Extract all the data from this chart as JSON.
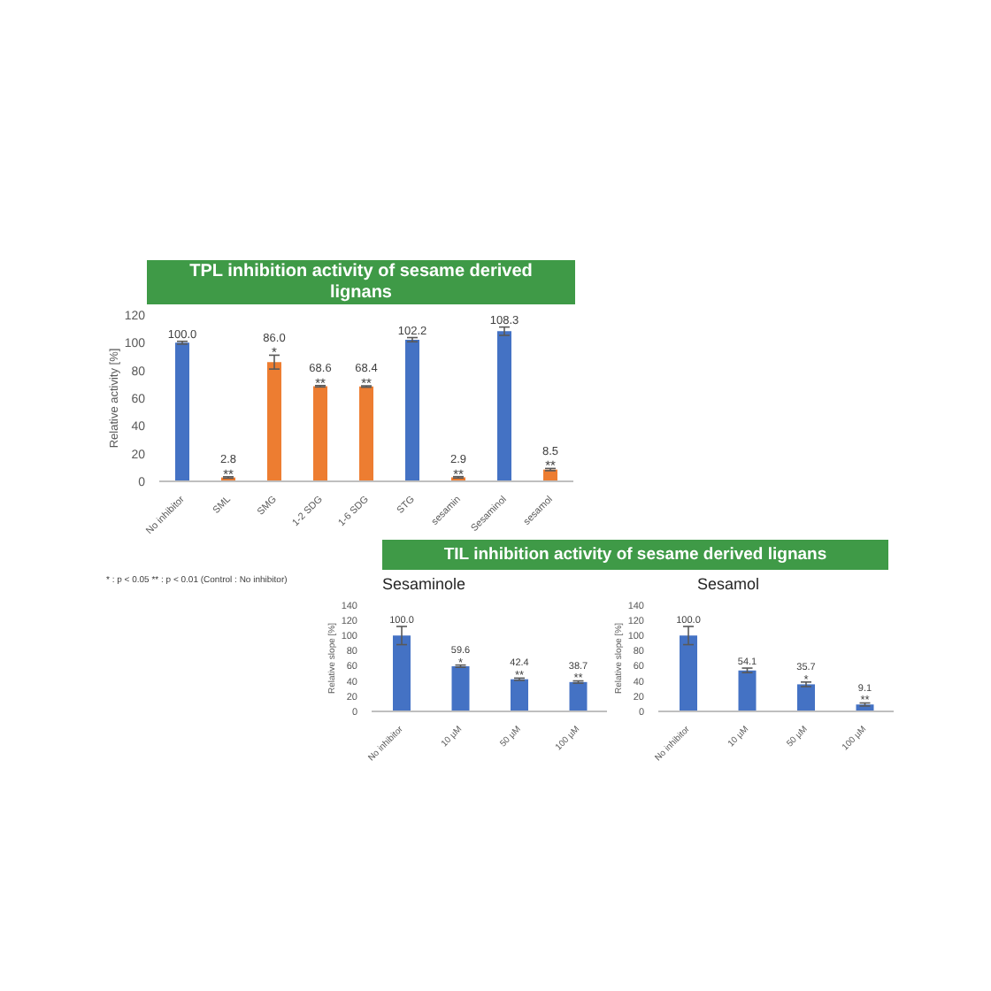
{
  "chart_data": [
    {
      "type": "bar",
      "title": "TPL inhibition activity of sesame derived lignans",
      "ylabel": "Relative activity [%]",
      "categories": [
        "No inhibitor",
        "SML",
        "SMG",
        "1-2 SDG",
        "1-6 SDG",
        "STG",
        "sesamin",
        "Sesaminol",
        "sesamol"
      ],
      "values": [
        100.0,
        2.8,
        86.0,
        68.6,
        68.4,
        102.2,
        2.9,
        108.3,
        8.5
      ],
      "colors": [
        "#4472c4",
        "#ed7d31",
        "#ed7d31",
        "#ed7d31",
        "#ed7d31",
        "#4472c4",
        "#ed7d31",
        "#4472c4",
        "#ed7d31"
      ],
      "errors": [
        1,
        0.5,
        5,
        0.5,
        0.5,
        1.5,
        0.5,
        3,
        0.8
      ],
      "value_labels": [
        "100.0",
        "2.8",
        "86.0",
        "68.6",
        "68.4",
        "102.2",
        "2.9",
        "108.3",
        "8.5"
      ],
      "ylim": [
        0,
        120
      ],
      "yticks": [
        0,
        20,
        40,
        60,
        80,
        100,
        120
      ],
      "annotations": [
        {
          "text": "**",
          "x": "SML",
          "y": 2.8
        },
        {
          "text": "*",
          "x": "SMG",
          "y": 86.0
        },
        {
          "text": "**",
          "x": "1-2 SDG",
          "y": 68.6
        },
        {
          "text": "**",
          "x": "1-6 SDG",
          "y": 68.4
        },
        {
          "text": "**",
          "x": "sesamin",
          "y": 2.9
        },
        {
          "text": "**",
          "x": "sesamol",
          "y": 8.5
        },
        "* : p < 0.05   ** : p < 0.01 (Control : No inhibitor)"
      ]
    },
    {
      "type": "other",
      "title": "TIL inhibition activity of sesame derived lignans"
    },
    {
      "type": "bar",
      "title": "Sesaminole",
      "ylabel": "Relative slope [%]",
      "categories": [
        "No inhibitor",
        "10 µM",
        "50 µM",
        "100 µM"
      ],
      "values": [
        100.0,
        59.6,
        42.4,
        38.7
      ],
      "color": "#4472c4",
      "errors": [
        12,
        1.5,
        1.5,
        1.5
      ],
      "value_labels": [
        "100.0",
        "59.6",
        "42.4",
        "38.7"
      ],
      "ylim": [
        0,
        140
      ],
      "yticks": [
        0,
        20,
        40,
        60,
        80,
        100,
        120,
        140
      ],
      "annotations": [
        {
          "text": "*",
          "x": "10 µM",
          "y": 59.6
        },
        {
          "text": "**",
          "x": "50 µM",
          "y": 42.4
        },
        {
          "text": "**",
          "x": "100 µM",
          "y": 38.7
        }
      ]
    },
    {
      "type": "bar",
      "title": "Sesamol",
      "ylabel": "Relative slope [%]",
      "categories": [
        "No inhibitor",
        "10 µM",
        "50 µM",
        "100 µM"
      ],
      "values": [
        100.0,
        54.1,
        35.7,
        9.1
      ],
      "color": "#4472c4",
      "errors": [
        12,
        3,
        3,
        2
      ],
      "value_labels": [
        "100.0",
        "54.1",
        "35.7",
        "9.1"
      ],
      "ylim": [
        0,
        140
      ],
      "yticks": [
        0,
        20,
        40,
        60,
        80,
        100,
        120,
        140
      ],
      "annotations": [
        {
          "text": "*",
          "x": "50 µM",
          "y": 35.7
        },
        {
          "text": "**",
          "x": "100 µM",
          "y": 9.1
        }
      ]
    }
  ]
}
